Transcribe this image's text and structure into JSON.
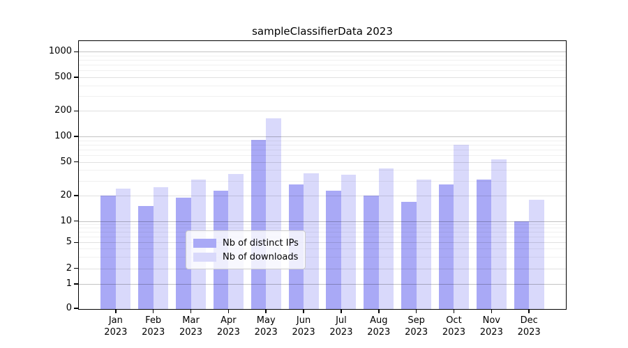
{
  "chart_data": {
    "type": "bar",
    "title": "sampleClassifierData 2023",
    "categories": [
      "Jan 2023",
      "Feb 2023",
      "Mar 2023",
      "Apr 2023",
      "May 2023",
      "Jun 2023",
      "Jul 2023",
      "Aug 2023",
      "Sep 2023",
      "Oct 2023",
      "Nov 2023",
      "Dec 2023"
    ],
    "series": [
      {
        "name": "Nb of distinct IPs",
        "color": "#a9a9f6",
        "values": [
          20,
          15,
          19,
          23,
          91,
          27,
          23,
          20,
          17,
          27,
          31,
          10
        ]
      },
      {
        "name": "Nb of downloads",
        "color": "#d9d9fb",
        "values": [
          24,
          25,
          31,
          36,
          165,
          37,
          35,
          42,
          31,
          80,
          54,
          18
        ]
      }
    ],
    "xlabel": "",
    "ylabel": "",
    "yscale": "symlog",
    "yticks": [
      0,
      1,
      2,
      5,
      10,
      20,
      50,
      100,
      200,
      500,
      1000
    ],
    "ylim": [
      0,
      1350
    ],
    "grid": true,
    "legend_position": "inside-bottom-center"
  }
}
